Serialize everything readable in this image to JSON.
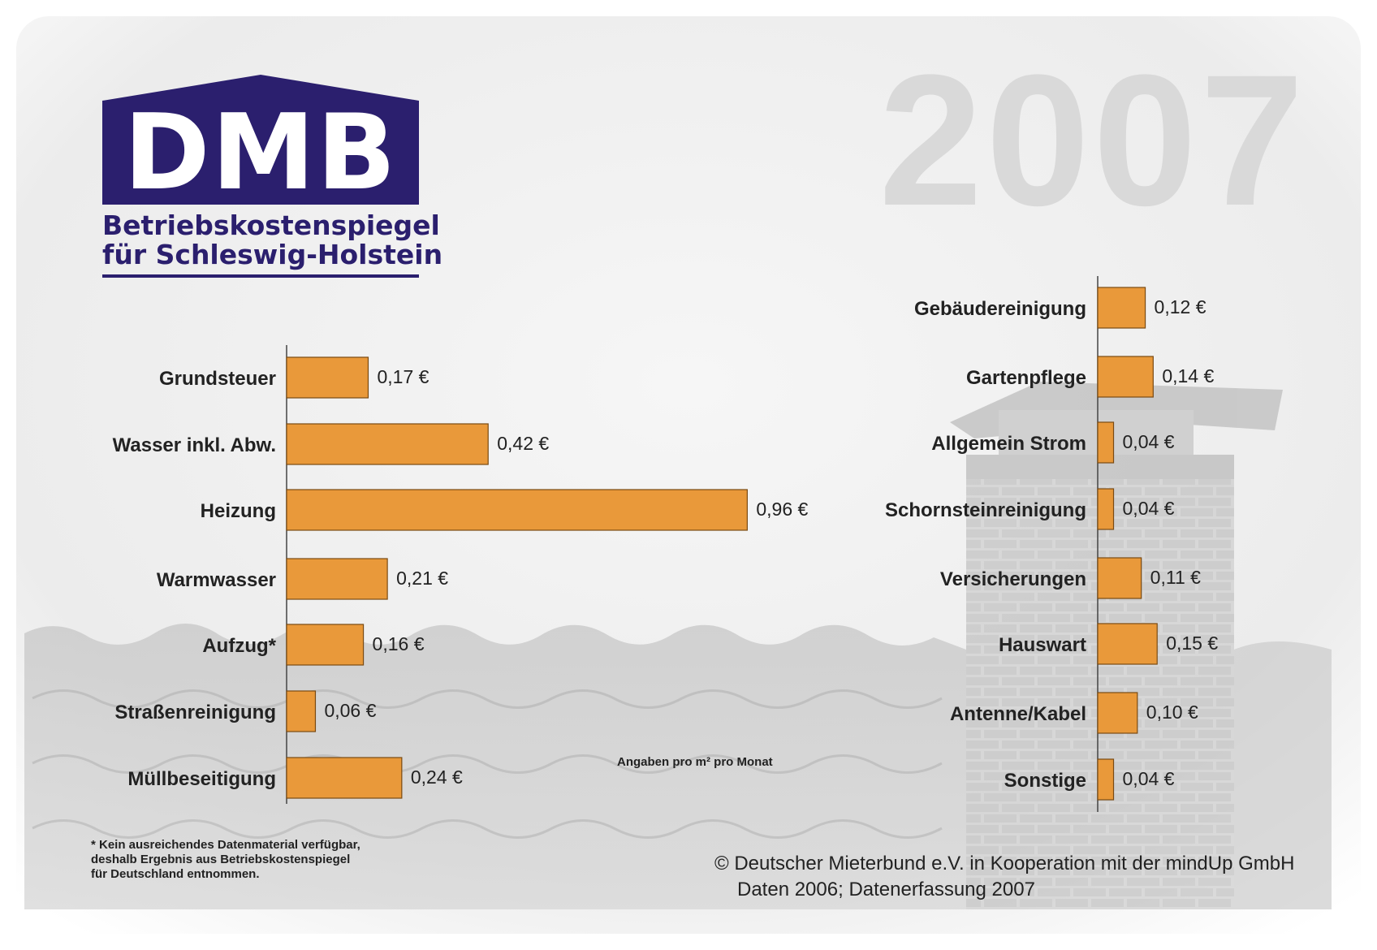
{
  "logo": {
    "text": "DMB",
    "subtitle_line1": "Betriebskostenspiegel",
    "subtitle_line2": "für Schleswig-Holstein",
    "color": "#2b1f6e"
  },
  "year": "2007",
  "unit_note": "Angaben pro m² pro Monat",
  "footnote": "* Kein ausreichendes Datenmaterial verfügbar,\n  deshalb Ergebnis aus Betriebskostenspiegel\n  für Deutschland entnommen.",
  "copyright": {
    "line1": "© Deutscher Mieterbund e.V. in Kooperation mit der mindUp GmbH",
    "line2": "Daten 2006; Datenerfassung 2007"
  },
  "colors": {
    "bar": "#e9993a",
    "bar_stroke": "#7a4a12",
    "axis": "#444444"
  },
  "chart_data": [
    {
      "type": "bar",
      "orientation": "horizontal",
      "categories": [
        "Grundsteuer",
        "Wasser inkl. Abw.",
        "Heizung",
        "Warmwasser",
        "Aufzug*",
        "Straßenreinigung",
        "Müllbeseitigung"
      ],
      "values": [
        0.17,
        0.42,
        0.96,
        0.21,
        0.16,
        0.06,
        0.24
      ],
      "value_labels": [
        "0,17 €",
        "0,42 €",
        "0,96 €",
        "0,21 €",
        "0,16 €",
        "0,06 €",
        "0,24 €"
      ]
    },
    {
      "type": "bar",
      "orientation": "horizontal",
      "categories": [
        "Gebäudereinigung",
        "Gartenpflege",
        "Allgemein Strom",
        "Schornsteinreinigung",
        "Versicherungen",
        "Hauswart",
        "Antenne/Kabel",
        "Sonstige"
      ],
      "values": [
        0.12,
        0.14,
        0.04,
        0.04,
        0.11,
        0.15,
        0.1,
        0.04
      ],
      "value_labels": [
        "0,12 €",
        "0,14 €",
        "0,04 €",
        "0,04 €",
        "0,11 €",
        "0,15 €",
        "0,10 €",
        "0,04 €"
      ]
    }
  ]
}
